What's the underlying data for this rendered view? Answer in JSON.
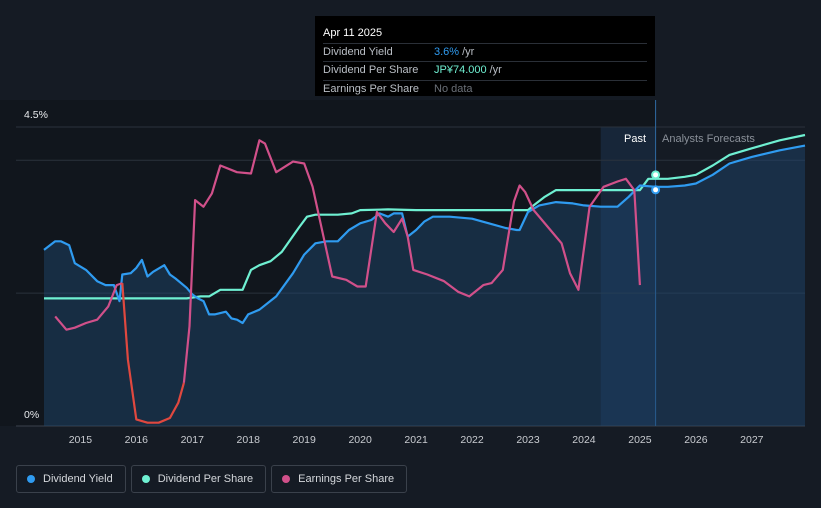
{
  "tooltip": {
    "date": "Apr 11 2025",
    "rows": [
      {
        "label": "Dividend Yield",
        "value": "3.6%",
        "unit": "/yr"
      },
      {
        "label": "Dividend Per Share",
        "value": "JP¥74.000",
        "unit": "/yr"
      },
      {
        "label": "Earnings Per Share",
        "value": "No data",
        "unit": ""
      }
    ]
  },
  "legend": [
    {
      "label": "Dividend Yield",
      "color": "#2f9bf0"
    },
    {
      "label": "Dividend Per Share",
      "color": "#6ff0d2"
    },
    {
      "label": "Earnings Per Share",
      "color": "#d1508a"
    }
  ],
  "chart_data": {
    "type": "line",
    "ytick_labels": [
      "4.5%",
      "0%"
    ],
    "ylim": [
      0,
      4.5
    ],
    "xlim": [
      2014.35,
      2027.95
    ],
    "xticks": [
      2015,
      2016,
      2017,
      2018,
      2019,
      2020,
      2021,
      2022,
      2023,
      2024,
      2025,
      2026,
      2027
    ],
    "region_labels": {
      "past": "Past",
      "forecast": "Analysts Forecasts"
    },
    "forecast_shade_start": 2024.3,
    "present": 2025.28,
    "grid": true,
    "legend_position": "bottom-left",
    "series": [
      {
        "name": "Dividend Yield",
        "color": "#2f9bf0",
        "x": [
          2014.35,
          2014.55,
          2014.65,
          2014.8,
          2014.9,
          2015.1,
          2015.3,
          2015.45,
          2015.6,
          2015.7,
          2015.75,
          2015.9,
          2016.0,
          2016.1,
          2016.2,
          2016.3,
          2016.5,
          2016.6,
          2016.7,
          2016.9,
          2017.0,
          2017.1,
          2017.2,
          2017.3,
          2017.4,
          2017.6,
          2017.7,
          2017.8,
          2017.9,
          2018.0,
          2018.2,
          2018.5,
          2018.8,
          2019.0,
          2019.2,
          2019.4,
          2019.6,
          2019.8,
          2020.0,
          2020.2,
          2020.35,
          2020.5,
          2020.6,
          2020.75,
          2020.85,
          2021.0,
          2021.15,
          2021.3,
          2021.6,
          2022.0,
          2022.3,
          2022.6,
          2022.8,
          2022.85,
          2023.0,
          2023.2,
          2023.5,
          2023.8,
          2024.0,
          2024.3,
          2024.6,
          2024.8,
          2025.0,
          2025.28,
          2025.5,
          2025.8,
          2026.0,
          2026.3,
          2026.6,
          2027.0,
          2027.5,
          2027.95
        ],
        "values": [
          2.65,
          2.78,
          2.78,
          2.72,
          2.45,
          2.35,
          2.18,
          2.12,
          2.12,
          1.88,
          2.28,
          2.3,
          2.38,
          2.5,
          2.25,
          2.32,
          2.42,
          2.28,
          2.22,
          2.08,
          1.98,
          1.92,
          1.88,
          1.68,
          1.68,
          1.72,
          1.62,
          1.6,
          1.55,
          1.68,
          1.75,
          1.95,
          2.3,
          2.58,
          2.75,
          2.78,
          2.78,
          2.95,
          3.05,
          3.1,
          3.2,
          3.15,
          3.2,
          3.2,
          2.85,
          2.95,
          3.08,
          3.15,
          3.15,
          3.12,
          3.05,
          2.98,
          2.95,
          2.95,
          3.22,
          3.32,
          3.37,
          3.35,
          3.32,
          3.3,
          3.3,
          3.45,
          3.62,
          3.6,
          3.6,
          3.62,
          3.65,
          3.78,
          3.95,
          4.05,
          4.15,
          4.22
        ]
      },
      {
        "name": "Dividend Per Share",
        "color": "#6ff0d2",
        "x": [
          2014.35,
          2015.5,
          2016.9,
          2017.15,
          2017.3,
          2017.5,
          2017.8,
          2017.9,
          2018.05,
          2018.2,
          2018.4,
          2018.6,
          2018.9,
          2019.05,
          2019.2,
          2019.6,
          2019.85,
          2020.0,
          2020.5,
          2021.0,
          2021.5,
          2022.0,
          2022.5,
          2022.9,
          2023.0,
          2023.1,
          2023.3,
          2023.5,
          2024.0,
          2024.5,
          2024.85,
          2025.0,
          2025.15,
          2025.28,
          2025.5,
          2025.8,
          2026.0,
          2026.3,
          2026.6,
          2027.0,
          2027.5,
          2027.95
        ],
        "values": [
          1.92,
          1.92,
          1.92,
          1.95,
          1.95,
          2.05,
          2.05,
          2.05,
          2.35,
          2.42,
          2.48,
          2.62,
          2.98,
          3.15,
          3.18,
          3.18,
          3.2,
          3.25,
          3.26,
          3.25,
          3.25,
          3.25,
          3.25,
          3.25,
          3.25,
          3.32,
          3.45,
          3.55,
          3.55,
          3.55,
          3.55,
          3.55,
          3.72,
          3.72,
          3.72,
          3.75,
          3.78,
          3.92,
          4.08,
          4.18,
          4.3,
          4.38
        ]
      },
      {
        "name": "Earnings Per Share",
        "color": "#d1508a",
        "x": [
          2014.55,
          2014.75,
          2014.9,
          2015.1,
          2015.3,
          2015.5,
          2015.65,
          2015.75,
          2015.85,
          2016.0,
          2016.2,
          2016.4,
          2016.6,
          2016.75,
          2016.85,
          2016.95,
          2017.05,
          2017.2,
          2017.35,
          2017.5,
          2017.8,
          2018.05,
          2018.2,
          2018.3,
          2018.5,
          2018.8,
          2019.0,
          2019.15,
          2019.5,
          2019.75,
          2019.95,
          2020.1,
          2020.3,
          2020.45,
          2020.6,
          2020.75,
          2020.85,
          2020.95,
          2021.2,
          2021.5,
          2021.75,
          2021.95,
          2022.2,
          2022.35,
          2022.55,
          2022.75,
          2022.85,
          2022.95,
          2023.1,
          2023.4,
          2023.6,
          2023.75,
          2023.9,
          2024.1,
          2024.35,
          2024.6,
          2024.75,
          2024.9,
          2025.0
        ],
        "values": [
          1.65,
          1.45,
          1.48,
          1.55,
          1.6,
          1.8,
          2.12,
          2.15,
          1.0,
          0.1,
          0.05,
          0.05,
          0.12,
          0.35,
          0.65,
          1.5,
          3.4,
          3.3,
          3.5,
          3.92,
          3.82,
          3.8,
          4.3,
          4.25,
          3.82,
          3.98,
          3.95,
          3.6,
          2.25,
          2.2,
          2.1,
          2.1,
          3.22,
          3.05,
          2.92,
          3.12,
          2.85,
          2.35,
          2.28,
          2.18,
          2.02,
          1.95,
          2.12,
          2.15,
          2.35,
          3.38,
          3.62,
          3.52,
          3.25,
          2.95,
          2.75,
          2.3,
          2.05,
          3.3,
          3.6,
          3.68,
          3.72,
          3.55,
          2.12
        ]
      }
    ]
  }
}
